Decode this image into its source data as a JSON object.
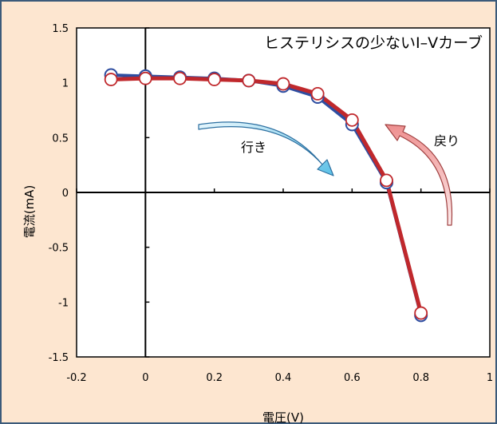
{
  "chart_data": {
    "type": "line",
    "title": "ヒステリシスの少ないI–Vカーブ",
    "xlabel": "電圧(V)",
    "ylabel": "電流(mA)",
    "xlim": [
      -0.2,
      1
    ],
    "ylim": [
      -1.5,
      1.5
    ],
    "xticks": [
      "-0.2",
      "0",
      "0.2",
      "0.4",
      "0.6",
      "0.8",
      "1"
    ],
    "yticks": [
      "1.5",
      "1",
      "0.5",
      "0",
      "-0.5",
      "-1",
      "-1.5"
    ],
    "grid": false,
    "annotations": {
      "forward": "行き",
      "backward": "戻り"
    },
    "series": [
      {
        "color": "#2e4da0",
        "x": [
          -0.1,
          0,
          0.1,
          0.2,
          0.3,
          0.4,
          0.5,
          0.6,
          0.7,
          0.8
        ],
        "y": [
          1.07,
          1.06,
          1.05,
          1.04,
          1.02,
          0.97,
          0.87,
          0.62,
          0.09,
          -1.12
        ]
      },
      {
        "color": "#c0282c",
        "x": [
          -0.1,
          0,
          0.1,
          0.2,
          0.3,
          0.4,
          0.5,
          0.6,
          0.7,
          0.8
        ],
        "y": [
          1.03,
          1.04,
          1.04,
          1.03,
          1.02,
          0.99,
          0.9,
          0.66,
          0.11,
          -1.1
        ]
      }
    ]
  }
}
